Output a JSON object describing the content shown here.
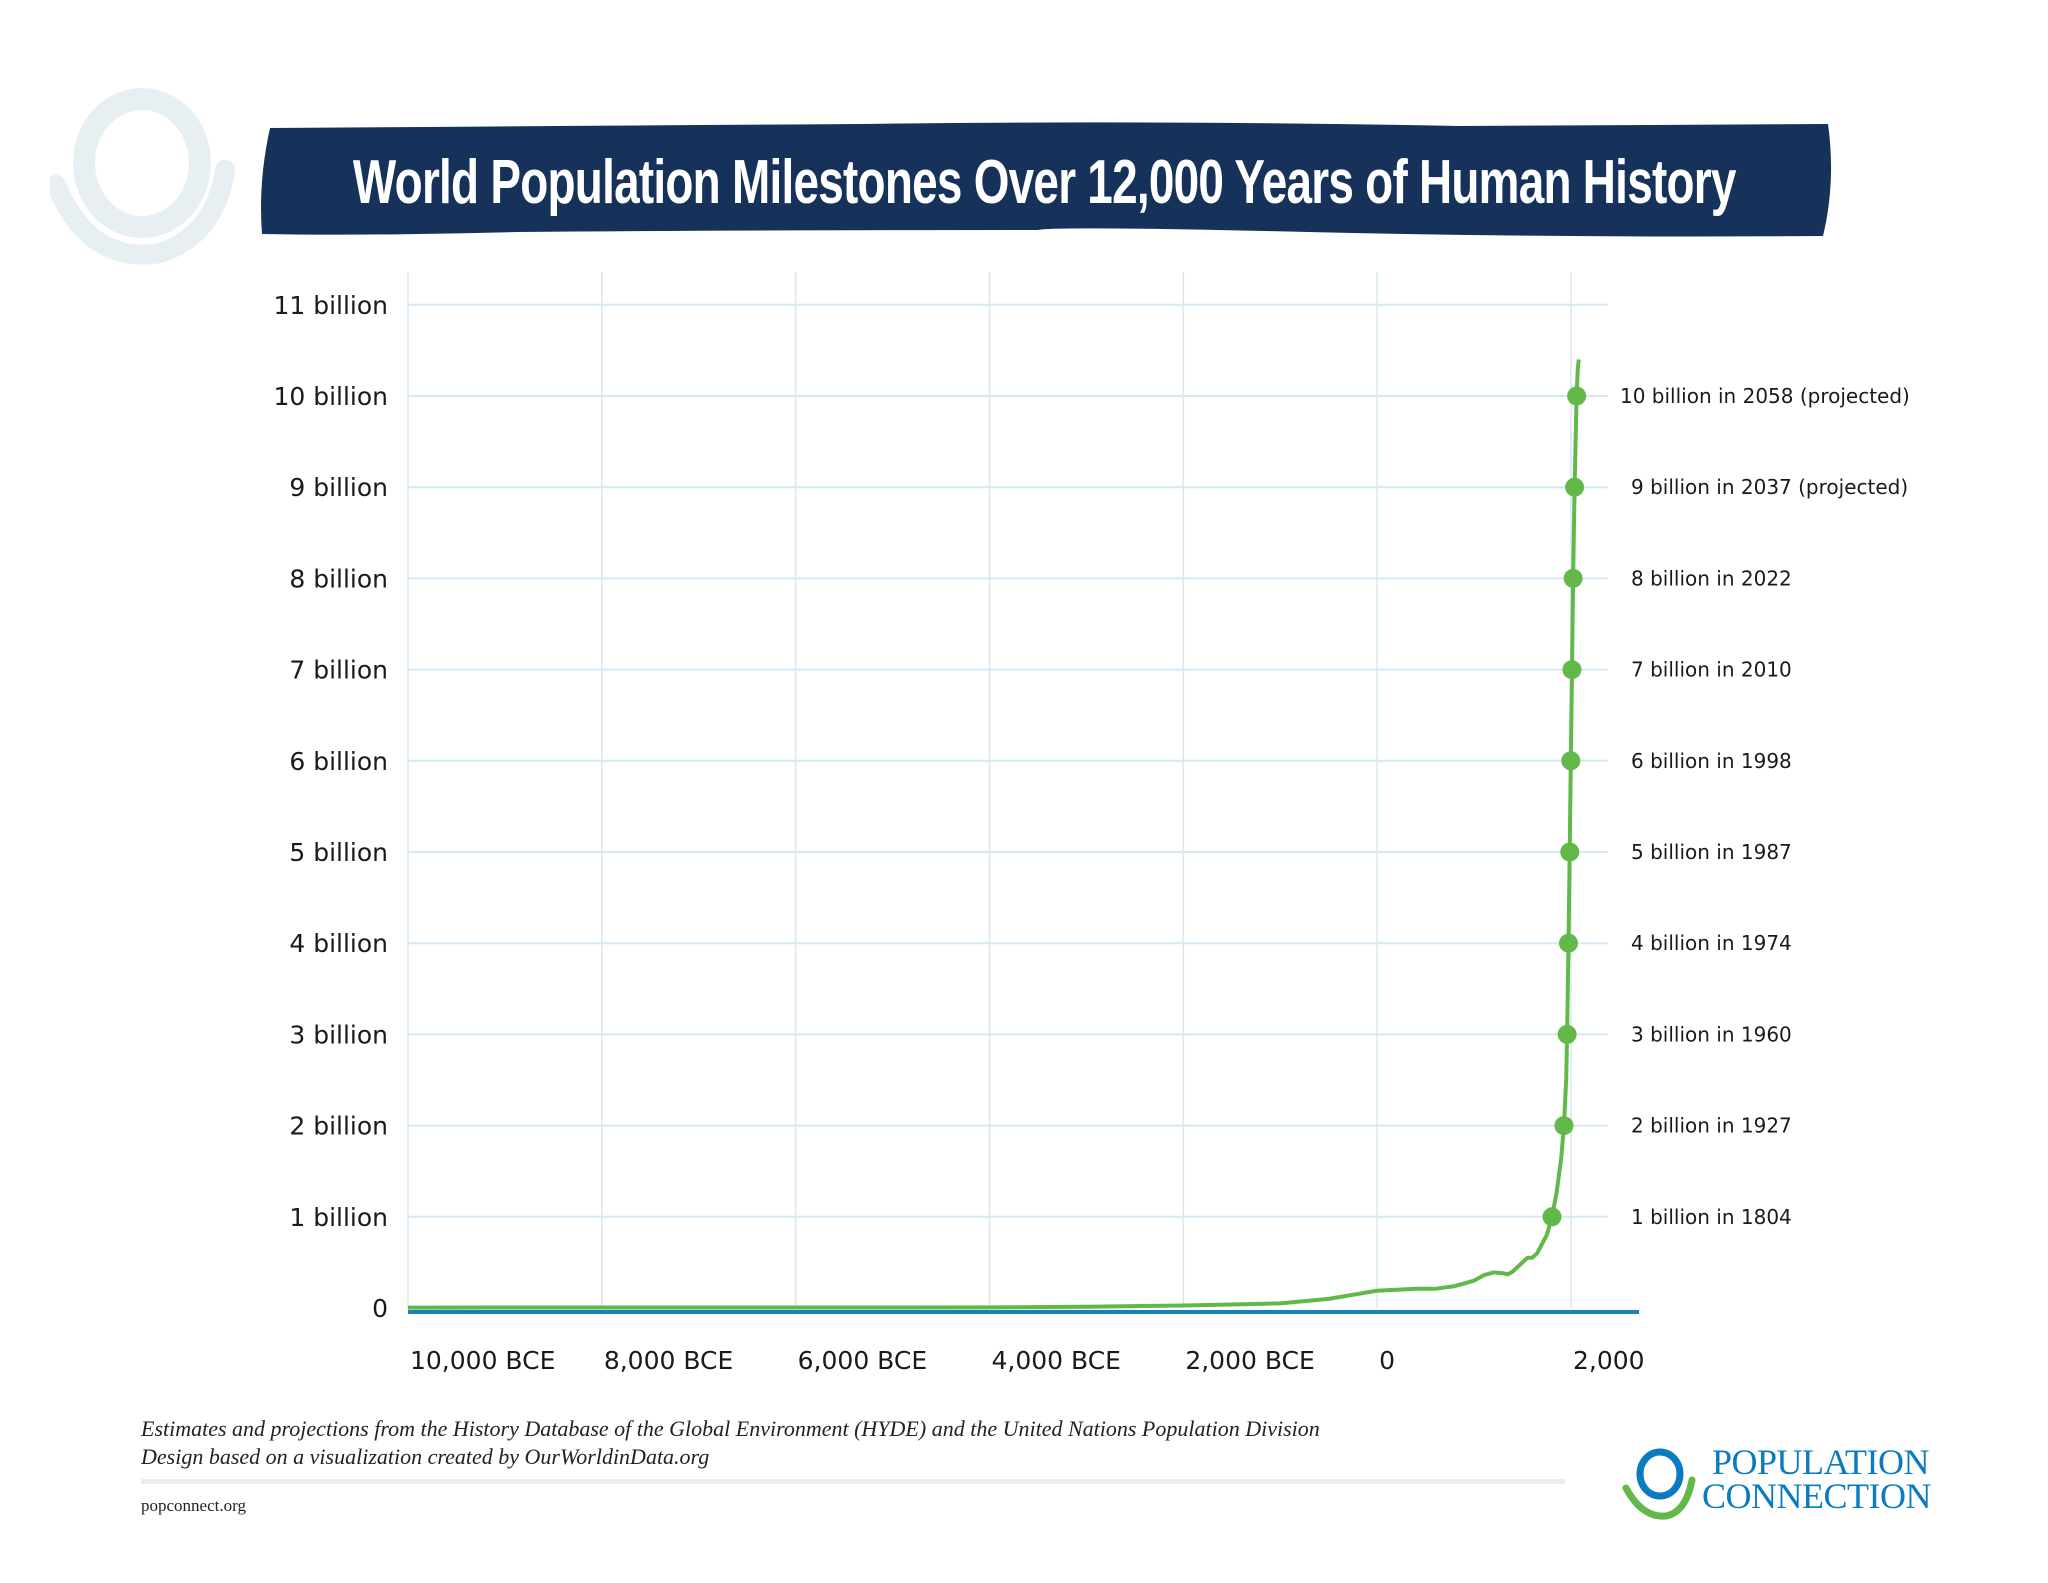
{
  "title": "World Population Milestones Over 12,000 Years of Human History",
  "colors": {
    "title_bg": "#16325a",
    "line": "#62b94a",
    "grid": "#d6e8f3",
    "axis": "#1a7fc1",
    "brand_blue": "#0a7bc1",
    "brand_green": "#62b94a",
    "deco_ring": "#e8eff3"
  },
  "chart_data": {
    "type": "line",
    "title": "World Population Milestones Over 12,000 Years of Human History",
    "xlabel": "",
    "ylabel": "",
    "xlim": [
      -10000,
      2000
    ],
    "ylim": [
      0,
      11
    ],
    "grid": true,
    "x_ticks": [
      {
        "value": -10000,
        "label": "10,000 BCE"
      },
      {
        "value": -8000,
        "label": "8,000 BCE"
      },
      {
        "value": -6000,
        "label": "6,000 BCE"
      },
      {
        "value": -4000,
        "label": "4,000 BCE"
      },
      {
        "value": -2000,
        "label": "2,000 BCE"
      },
      {
        "value": 0,
        "label": "0"
      },
      {
        "value": 2000,
        "label": "2,000"
      }
    ],
    "y_ticks": [
      {
        "value": 0,
        "label": "0"
      },
      {
        "value": 1,
        "label": "1 billion"
      },
      {
        "value": 2,
        "label": "2 billion"
      },
      {
        "value": 3,
        "label": "3 billion"
      },
      {
        "value": 4,
        "label": "4 billion"
      },
      {
        "value": 5,
        "label": "5 billion"
      },
      {
        "value": 6,
        "label": "6 billion"
      },
      {
        "value": 7,
        "label": "7 billion"
      },
      {
        "value": 8,
        "label": "8 billion"
      },
      {
        "value": 9,
        "label": "9 billion"
      },
      {
        "value": 10,
        "label": "10 billion"
      },
      {
        "value": 11,
        "label": "11 billion"
      }
    ],
    "series": [
      {
        "x": [
          -10000,
          -8000,
          -6000,
          -5000,
          -4000,
          -3000,
          -2000,
          -1000,
          -500,
          0,
          200,
          400,
          600,
          800,
          900,
          1000,
          1100,
          1200,
          1300,
          1350,
          1400,
          1500,
          1550,
          1600,
          1650,
          1700,
          1750,
          1804,
          1850,
          1900,
          1927,
          1950,
          1960,
          1974,
          1987,
          1998,
          2010,
          2022,
          2037,
          2058,
          2070,
          2080
        ],
        "y": [
          0.004,
          0.005,
          0.005,
          0.005,
          0.007,
          0.014,
          0.027,
          0.05,
          0.1,
          0.19,
          0.2,
          0.21,
          0.21,
          0.24,
          0.27,
          0.3,
          0.36,
          0.39,
          0.38,
          0.37,
          0.4,
          0.5,
          0.55,
          0.55,
          0.6,
          0.7,
          0.8,
          1.0,
          1.26,
          1.65,
          2.0,
          2.5,
          3.0,
          4.0,
          5.0,
          6.0,
          7.0,
          8.0,
          9.0,
          10.0,
          10.3,
          10.4
        ]
      }
    ],
    "milestones": [
      {
        "year": 1804,
        "value": 1,
        "label": "1 billion in 1804"
      },
      {
        "year": 1927,
        "value": 2,
        "label": "2 billion in 1927"
      },
      {
        "year": 1960,
        "value": 3,
        "label": "3 billion in 1960"
      },
      {
        "year": 1974,
        "value": 4,
        "label": "4 billion in 1974"
      },
      {
        "year": 1987,
        "value": 5,
        "label": "5 billion in 1987"
      },
      {
        "year": 1998,
        "value": 6,
        "label": "6 billion in 1998"
      },
      {
        "year": 2010,
        "value": 7,
        "label": "7 billion in 2010"
      },
      {
        "year": 2022,
        "value": 8,
        "label": "8 billion in 2022"
      },
      {
        "year": 2037,
        "value": 9,
        "label": "9 billion in 2037 (projected)"
      },
      {
        "year": 2058,
        "value": 10,
        "label": "10 billion in 2058 (projected)"
      }
    ]
  },
  "footer": {
    "source": "Estimates and projections from the History Database of the Global Environment (HYDE) and the United Nations Population Division",
    "credit": "Design based on a visualization created by OurWorldinData.org",
    "site": "popconnect.org"
  },
  "logo": {
    "line1": "POPULATION",
    "line2": "CONNECTION"
  }
}
